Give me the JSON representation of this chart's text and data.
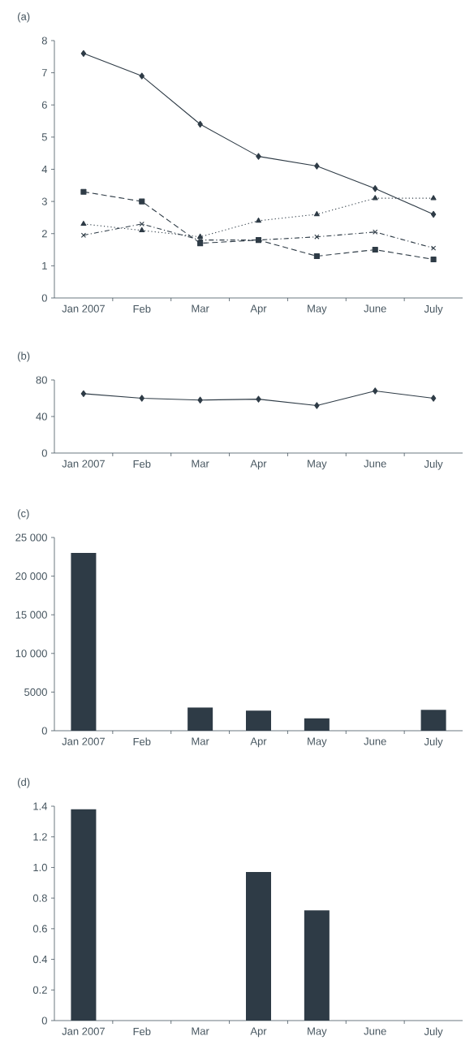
{
  "chart_data": [
    {
      "type": "line",
      "title": "(a)",
      "categories": [
        "Jan 2007",
        "Feb",
        "Mar",
        "Apr",
        "May",
        "June",
        "July"
      ],
      "series": [
        {
          "color": "#2e3b46",
          "marker": "diamond",
          "line_style": "solid",
          "values": [
            7.6,
            6.9,
            5.4,
            4.4,
            4.1,
            3.4,
            2.6
          ]
        },
        {
          "color": "#2e3b46",
          "marker": "square",
          "line_style": "dashed",
          "values": [
            3.3,
            3.0,
            1.7,
            1.8,
            1.3,
            1.5,
            1.2
          ]
        },
        {
          "color": "#2e3b46",
          "marker": "triangle",
          "line_style": "dotted",
          "values": [
            2.3,
            2.1,
            1.9,
            2.4,
            2.6,
            3.1,
            3.1
          ]
        },
        {
          "color": "#2e3b46",
          "marker": "cross",
          "line_style": "dashdot",
          "values": [
            1.95,
            2.3,
            1.8,
            1.8,
            1.9,
            2.05,
            1.55
          ]
        }
      ],
      "ylim": [
        0,
        8
      ],
      "yticks": [
        0,
        1,
        2,
        3,
        4,
        5,
        6,
        7,
        8
      ]
    },
    {
      "type": "line",
      "title": "(b)",
      "categories": [
        "Jan 2007",
        "Feb",
        "Mar",
        "Apr",
        "May",
        "June",
        "July"
      ],
      "values": [
        65,
        60,
        58,
        59,
        52,
        68,
        60
      ],
      "color": "#2e3b46",
      "marker": "diamond",
      "line_style": "solid",
      "ylim": [
        0,
        80
      ],
      "yticks": [
        0,
        40,
        80
      ]
    },
    {
      "type": "bar",
      "title": "(c)",
      "categories": [
        "Jan 2007",
        "Feb",
        "Mar",
        "Apr",
        "May",
        "June",
        "July"
      ],
      "values": [
        23000,
        null,
        3000,
        2600,
        1600,
        null,
        2700
      ],
      "color": "#2e3b46",
      "ylim": [
        0,
        25000
      ],
      "yticks": [
        0,
        5000,
        {
          "value": 10000,
          "label": "10 000"
        },
        {
          "value": 15000,
          "label": "15 000"
        },
        {
          "value": 20000,
          "label": "20 000"
        },
        {
          "value": 25000,
          "label": "25 000"
        }
      ]
    },
    {
      "type": "bar",
      "title": "(d)",
      "categories": [
        "Jan 2007",
        "Feb",
        "Mar",
        "Apr",
        "May",
        "June",
        "July"
      ],
      "values": [
        1.38,
        null,
        null,
        0.97,
        0.72,
        null,
        null
      ],
      "color": "#2e3b46",
      "ylim": [
        0,
        1.4
      ],
      "yticks": [
        0,
        0.2,
        0.4,
        0.6,
        0.8,
        {
          "value": 1.0,
          "label": "1.0"
        },
        1.2,
        1.4
      ]
    }
  ]
}
